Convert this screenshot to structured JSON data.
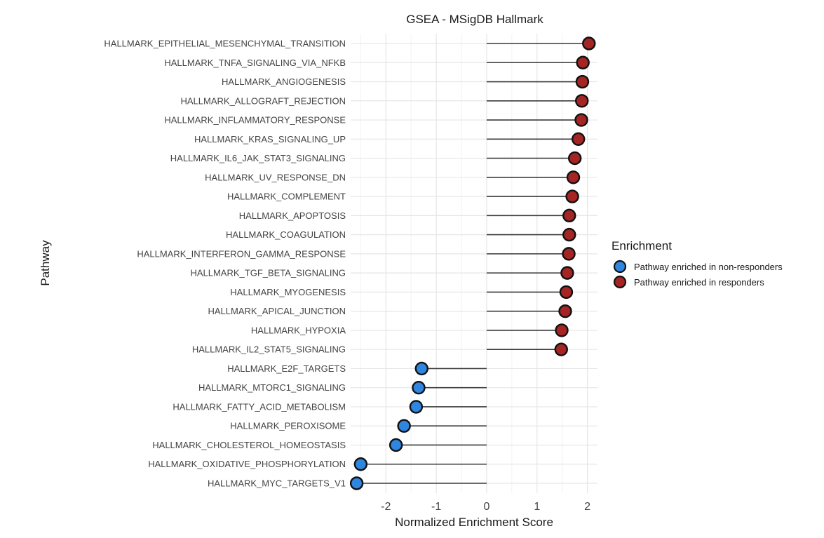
{
  "chart_data": {
    "type": "scatter",
    "subtype": "lollipop",
    "title": "GSEA - MSigDB Hallmark",
    "xlabel": "Normalized Enrichment Score",
    "ylabel": "Pathway",
    "xlim": [
      -2.7,
      2.2
    ],
    "xticks": [
      -2,
      -1,
      0,
      1,
      2
    ],
    "xtick_labels": [
      "-2",
      "-1",
      "0",
      "1",
      "2"
    ],
    "grid": true,
    "legend": {
      "title": "Enrichment",
      "placement": "right",
      "entries": [
        {
          "label": "Pathway enriched in non-responders",
          "color": "#2e86e0"
        },
        {
          "label": "Pathway enriched in responders",
          "color": "#a52424"
        }
      ]
    },
    "categories": [
      "HALLMARK_EPITHELIAL_MESENCHYMAL_TRANSITION",
      "HALLMARK_TNFA_SIGNALING_VIA_NFKB",
      "HALLMARK_ANGIOGENESIS",
      "HALLMARK_ALLOGRAFT_REJECTION",
      "HALLMARK_INFLAMMATORY_RESPONSE",
      "HALLMARK_KRAS_SIGNALING_UP",
      "HALLMARK_IL6_JAK_STAT3_SIGNALING",
      "HALLMARK_UV_RESPONSE_DN",
      "HALLMARK_COMPLEMENT",
      "HALLMARK_APOPTOSIS",
      "HALLMARK_COAGULATION",
      "HALLMARK_INTERFERON_GAMMA_RESPONSE",
      "HALLMARK_TGF_BETA_SIGNALING",
      "HALLMARK_MYOGENESIS",
      "HALLMARK_APICAL_JUNCTION",
      "HALLMARK_HYPOXIA",
      "HALLMARK_IL2_STAT5_SIGNALING",
      "HALLMARK_E2F_TARGETS",
      "HALLMARK_MTORC1_SIGNALING",
      "HALLMARK_FATTY_ACID_METABOLISM",
      "HALLMARK_PEROXISOME",
      "HALLMARK_CHOLESTEROL_HOMEOSTASIS",
      "HALLMARK_OXIDATIVE_PHOSPHORYLATION",
      "HALLMARK_MYC_TARGETS_V1"
    ],
    "values": [
      2.03,
      1.91,
      1.9,
      1.89,
      1.88,
      1.82,
      1.75,
      1.72,
      1.7,
      1.64,
      1.64,
      1.63,
      1.6,
      1.58,
      1.56,
      1.49,
      1.48,
      -1.29,
      -1.35,
      -1.4,
      -1.64,
      -1.8,
      -2.5,
      -2.58
    ],
    "groups": [
      "Pathway enriched in responders",
      "Pathway enriched in responders",
      "Pathway enriched in responders",
      "Pathway enriched in responders",
      "Pathway enriched in responders",
      "Pathway enriched in responders",
      "Pathway enriched in responders",
      "Pathway enriched in responders",
      "Pathway enriched in responders",
      "Pathway enriched in responders",
      "Pathway enriched in responders",
      "Pathway enriched in responders",
      "Pathway enriched in responders",
      "Pathway enriched in responders",
      "Pathway enriched in responders",
      "Pathway enriched in responders",
      "Pathway enriched in responders",
      "Pathway enriched in non-responders",
      "Pathway enriched in non-responders",
      "Pathway enriched in non-responders",
      "Pathway enriched in non-responders",
      "Pathway enriched in non-responders",
      "Pathway enriched in non-responders",
      "Pathway enriched in non-responders"
    ]
  }
}
